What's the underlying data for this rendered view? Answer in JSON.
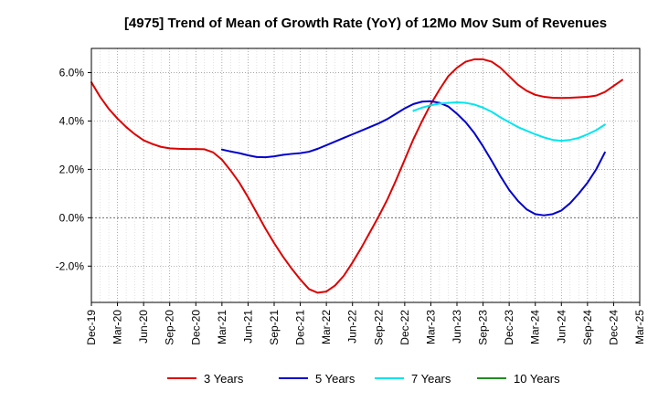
{
  "chart_data": {
    "type": "line",
    "title": "[4975]  Trend of Mean of Growth Rate (YoY) of 12Mo Mov Sum of Revenues",
    "xlabel": "",
    "ylabel": "",
    "ylim": [
      -3.5,
      7.0
    ],
    "yticks": [
      -2.0,
      0.0,
      2.0,
      4.0,
      6.0
    ],
    "ytick_labels": [
      "-2.0%",
      "0.0%",
      "2.0%",
      "4.0%",
      "6.0%"
    ],
    "grid": true,
    "legend_position": "bottom",
    "x_start": "Dec-19",
    "x_months": 63,
    "xtick_labels": [
      "Dec-19",
      "Mar-20",
      "Jun-20",
      "Sep-20",
      "Dec-20",
      "Mar-21",
      "Jun-21",
      "Sep-21",
      "Dec-21",
      "Mar-22",
      "Jun-22",
      "Sep-22",
      "Dec-22",
      "Mar-23",
      "Jun-23",
      "Sep-23",
      "Dec-23",
      "Mar-24",
      "Jun-24",
      "Sep-24",
      "Dec-24",
      "Mar-25"
    ],
    "series": [
      {
        "name": "3 Years",
        "color": "#dd0000",
        "points": [
          [
            0,
            5.6
          ],
          [
            1,
            5.0
          ],
          [
            2,
            4.5
          ],
          [
            3,
            4.1
          ],
          [
            4,
            3.75
          ],
          [
            5,
            3.45
          ],
          [
            6,
            3.2
          ],
          [
            7,
            3.05
          ],
          [
            8,
            2.93
          ],
          [
            9,
            2.87
          ],
          [
            10,
            2.85
          ],
          [
            11,
            2.84
          ],
          [
            12,
            2.84
          ],
          [
            13,
            2.83
          ],
          [
            14,
            2.7
          ],
          [
            15,
            2.4
          ],
          [
            16,
            1.95
          ],
          [
            17,
            1.45
          ],
          [
            18,
            0.85
          ],
          [
            19,
            0.2
          ],
          [
            20,
            -0.45
          ],
          [
            21,
            -1.05
          ],
          [
            22,
            -1.6
          ],
          [
            23,
            -2.1
          ],
          [
            24,
            -2.55
          ],
          [
            25,
            -2.95
          ],
          [
            26,
            -3.1
          ],
          [
            27,
            -3.05
          ],
          [
            28,
            -2.8
          ],
          [
            29,
            -2.4
          ],
          [
            30,
            -1.85
          ],
          [
            31,
            -1.25
          ],
          [
            32,
            -0.6
          ],
          [
            33,
            0.05
          ],
          [
            34,
            0.75
          ],
          [
            35,
            1.55
          ],
          [
            36,
            2.4
          ],
          [
            37,
            3.25
          ],
          [
            38,
            4.0
          ],
          [
            39,
            4.7
          ],
          [
            40,
            5.3
          ],
          [
            41,
            5.85
          ],
          [
            42,
            6.2
          ],
          [
            43,
            6.45
          ],
          [
            44,
            6.55
          ],
          [
            45,
            6.55
          ],
          [
            46,
            6.45
          ],
          [
            47,
            6.2
          ],
          [
            48,
            5.85
          ],
          [
            49,
            5.5
          ],
          [
            50,
            5.25
          ],
          [
            51,
            5.08
          ],
          [
            52,
            5.0
          ],
          [
            53,
            4.96
          ],
          [
            54,
            4.95
          ],
          [
            55,
            4.96
          ],
          [
            56,
            4.98
          ],
          [
            57,
            5.0
          ],
          [
            58,
            5.05
          ],
          [
            59,
            5.2
          ],
          [
            60,
            5.45
          ],
          [
            61,
            5.7
          ]
        ]
      },
      {
        "name": "5 Years",
        "color": "#0000cc",
        "points": [
          [
            15,
            2.82
          ],
          [
            16,
            2.74
          ],
          [
            17,
            2.67
          ],
          [
            18,
            2.58
          ],
          [
            19,
            2.51
          ],
          [
            20,
            2.5
          ],
          [
            21,
            2.54
          ],
          [
            22,
            2.6
          ],
          [
            23,
            2.64
          ],
          [
            24,
            2.67
          ],
          [
            25,
            2.73
          ],
          [
            26,
            2.85
          ],
          [
            27,
            3.0
          ],
          [
            28,
            3.15
          ],
          [
            29,
            3.3
          ],
          [
            30,
            3.45
          ],
          [
            31,
            3.6
          ],
          [
            32,
            3.75
          ],
          [
            33,
            3.9
          ],
          [
            34,
            4.08
          ],
          [
            35,
            4.3
          ],
          [
            36,
            4.52
          ],
          [
            37,
            4.7
          ],
          [
            38,
            4.8
          ],
          [
            39,
            4.82
          ],
          [
            40,
            4.75
          ],
          [
            41,
            4.6
          ],
          [
            42,
            4.3
          ],
          [
            43,
            3.95
          ],
          [
            44,
            3.5
          ],
          [
            45,
            2.95
          ],
          [
            46,
            2.35
          ],
          [
            47,
            1.72
          ],
          [
            48,
            1.15
          ],
          [
            49,
            0.7
          ],
          [
            50,
            0.35
          ],
          [
            51,
            0.15
          ],
          [
            52,
            0.1
          ],
          [
            53,
            0.15
          ],
          [
            54,
            0.3
          ],
          [
            55,
            0.6
          ],
          [
            56,
            1.0
          ],
          [
            57,
            1.45
          ],
          [
            58,
            2.0
          ],
          [
            59,
            2.7
          ]
        ]
      },
      {
        "name": "7 Years",
        "color": "#00e5ee",
        "points": [
          [
            37,
            4.42
          ],
          [
            38,
            4.55
          ],
          [
            39,
            4.65
          ],
          [
            40,
            4.72
          ],
          [
            41,
            4.75
          ],
          [
            42,
            4.77
          ],
          [
            43,
            4.75
          ],
          [
            44,
            4.68
          ],
          [
            45,
            4.55
          ],
          [
            46,
            4.38
          ],
          [
            47,
            4.15
          ],
          [
            48,
            3.95
          ],
          [
            49,
            3.75
          ],
          [
            50,
            3.6
          ],
          [
            51,
            3.45
          ],
          [
            52,
            3.32
          ],
          [
            53,
            3.22
          ],
          [
            54,
            3.18
          ],
          [
            55,
            3.22
          ],
          [
            56,
            3.3
          ],
          [
            57,
            3.45
          ],
          [
            58,
            3.62
          ],
          [
            59,
            3.85
          ]
        ]
      },
      {
        "name": "10 Years",
        "color": "#228b22",
        "points": []
      }
    ]
  }
}
